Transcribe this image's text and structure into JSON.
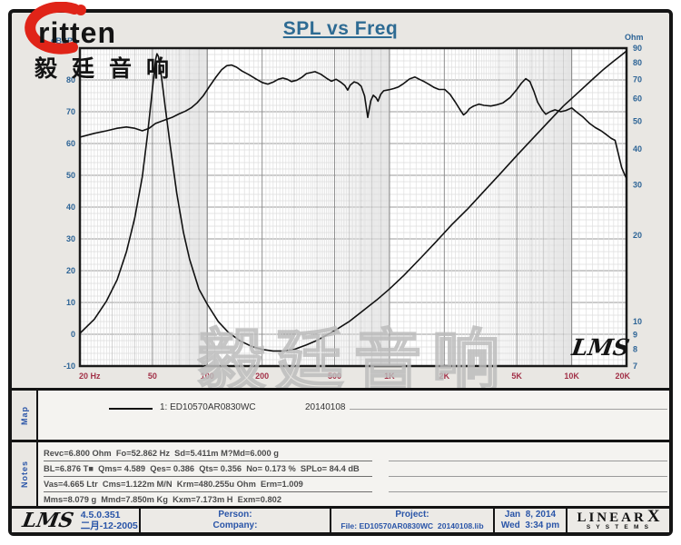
{
  "brand": {
    "name": "ritten",
    "cjk": "毅廷音响"
  },
  "watermark": "毅廷音响",
  "chart_data": {
    "type": "line",
    "title": "SPL vs Freq",
    "x_axis": {
      "scale": "log",
      "min": 20,
      "max": 20000,
      "unit": "Hz",
      "tick_values": [
        20,
        50,
        100,
        200,
        500,
        1000,
        2000,
        5000,
        10000,
        20000
      ],
      "tick_labels": [
        "20 Hz",
        "50",
        "100",
        "200",
        "500",
        "1K",
        "2K",
        "5K",
        "10K",
        "20K"
      ]
    },
    "y_left": {
      "label": "dBSPL",
      "scale": "linear",
      "min": -10,
      "max": 90,
      "ticks": [
        90,
        80,
        70,
        60,
        50,
        40,
        30,
        20,
        10,
        0,
        -10
      ]
    },
    "y_right": {
      "label": "Ohm",
      "scale": "log",
      "min": 7,
      "max": 90,
      "ticks": [
        90,
        80,
        70,
        60,
        50,
        40,
        30,
        20,
        10,
        9,
        8,
        7
      ]
    },
    "grid": "log-frequency grid on, linear dB minor grid on",
    "legend_position": "map-row-below-chart",
    "inner_logo": "LMS",
    "series": [
      {
        "name": "SPL  1: ED10570AR0830WC 20140108",
        "axis": "left",
        "color": "#111111",
        "points": [
          [
            20,
            62
          ],
          [
            24,
            63.2
          ],
          [
            28,
            64
          ],
          [
            32,
            64.8
          ],
          [
            36,
            65.2
          ],
          [
            40,
            64.8
          ],
          [
            44,
            64
          ],
          [
            48,
            64.8
          ],
          [
            52,
            66.3
          ],
          [
            58,
            67.3
          ],
          [
            64,
            68.2
          ],
          [
            70,
            69.3
          ],
          [
            76,
            70.2
          ],
          [
            82,
            71.3
          ],
          [
            88,
            72.8
          ],
          [
            95,
            75
          ],
          [
            103,
            78
          ],
          [
            112,
            81
          ],
          [
            120,
            83.2
          ],
          [
            128,
            84.5
          ],
          [
            136,
            84.7
          ],
          [
            145,
            84
          ],
          [
            155,
            82.8
          ],
          [
            170,
            81.6
          ],
          [
            185,
            80.3
          ],
          [
            200,
            79.2
          ],
          [
            215,
            78.7
          ],
          [
            230,
            79.3
          ],
          [
            245,
            80.2
          ],
          [
            260,
            80.6
          ],
          [
            275,
            80.2
          ],
          [
            290,
            79.5
          ],
          [
            310,
            79.9
          ],
          [
            330,
            80.8
          ],
          [
            350,
            82
          ],
          [
            390,
            82.6
          ],
          [
            420,
            81.8
          ],
          [
            450,
            80.6
          ],
          [
            480,
            79.6
          ],
          [
            510,
            80.2
          ],
          [
            540,
            79.3
          ],
          [
            570,
            78.2
          ],
          [
            590,
            76.8
          ],
          [
            610,
            78.4
          ],
          [
            640,
            79.4
          ],
          [
            670,
            79
          ],
          [
            700,
            78
          ],
          [
            730,
            75
          ],
          [
            760,
            68.2
          ],
          [
            790,
            73.5
          ],
          [
            815,
            75.2
          ],
          [
            845,
            74.4
          ],
          [
            865,
            73.3
          ],
          [
            895,
            75.5
          ],
          [
            930,
            76.6
          ],
          [
            970,
            76.8
          ],
          [
            1010,
            77
          ],
          [
            1060,
            77.3
          ],
          [
            1120,
            77.8
          ],
          [
            1200,
            78.9
          ],
          [
            1290,
            80.3
          ],
          [
            1380,
            80.9
          ],
          [
            1460,
            80.2
          ],
          [
            1550,
            79.5
          ],
          [
            1650,
            78.6
          ],
          [
            1750,
            77.7
          ],
          [
            1870,
            77
          ],
          [
            2010,
            77
          ],
          [
            2150,
            75.5
          ],
          [
            2300,
            73
          ],
          [
            2450,
            70.5
          ],
          [
            2550,
            69
          ],
          [
            2650,
            69.8
          ],
          [
            2750,
            71
          ],
          [
            2900,
            71.8
          ],
          [
            3100,
            72.4
          ],
          [
            3300,
            72
          ],
          [
            3600,
            71.8
          ],
          [
            3900,
            72.2
          ],
          [
            4200,
            72.8
          ],
          [
            4600,
            74.5
          ],
          [
            5000,
            77
          ],
          [
            5300,
            79
          ],
          [
            5600,
            80.4
          ],
          [
            5900,
            79.5
          ],
          [
            6200,
            76.5
          ],
          [
            6500,
            73
          ],
          [
            6900,
            70.5
          ],
          [
            7200,
            69.2
          ],
          [
            7600,
            70
          ],
          [
            8100,
            70.6
          ],
          [
            8700,
            70
          ],
          [
            9300,
            70.4
          ],
          [
            10000,
            71.2
          ],
          [
            10700,
            69.8
          ],
          [
            11500,
            68.4
          ],
          [
            12500,
            66.4
          ],
          [
            13500,
            65
          ],
          [
            14500,
            64
          ],
          [
            15500,
            62.8
          ],
          [
            16500,
            61.6
          ],
          [
            17300,
            61
          ],
          [
            18000,
            57
          ],
          [
            18800,
            52.5
          ],
          [
            19500,
            50.3
          ],
          [
            20000,
            49
          ]
        ]
      },
      {
        "name": "Impedance",
        "axis": "right",
        "color": "#111111",
        "points": [
          [
            20,
            9.1
          ],
          [
            24,
            10.2
          ],
          [
            28,
            11.8
          ],
          [
            32,
            14
          ],
          [
            36,
            17.5
          ],
          [
            40,
            23
          ],
          [
            44,
            32
          ],
          [
            47,
            45
          ],
          [
            50,
            65
          ],
          [
            52,
            82
          ],
          [
            53,
            86
          ],
          [
            54,
            84
          ],
          [
            56,
            72
          ],
          [
            59,
            55
          ],
          [
            63,
            40
          ],
          [
            68,
            28
          ],
          [
            74,
            20.5
          ],
          [
            80,
            16.5
          ],
          [
            90,
            13
          ],
          [
            100,
            11.5
          ],
          [
            115,
            10
          ],
          [
            130,
            9.2
          ],
          [
            150,
            8.6
          ],
          [
            175,
            8.2
          ],
          [
            200,
            8
          ],
          [
            230,
            7.9
          ],
          [
            260,
            7.9
          ],
          [
            300,
            8
          ],
          [
            350,
            8.3
          ],
          [
            400,
            8.6
          ],
          [
            500,
            9.3
          ],
          [
            600,
            10
          ],
          [
            700,
            10.8
          ],
          [
            850,
            11.9
          ],
          [
            1000,
            13
          ],
          [
            1200,
            14.5
          ],
          [
            1500,
            16.8
          ],
          [
            1800,
            19
          ],
          [
            2200,
            21.8
          ],
          [
            2700,
            24.8
          ],
          [
            3300,
            28.5
          ],
          [
            4000,
            32.5
          ],
          [
            5000,
            38
          ],
          [
            6000,
            43
          ],
          [
            7500,
            50
          ],
          [
            9000,
            56.5
          ],
          [
            11000,
            63.5
          ],
          [
            13000,
            70
          ],
          [
            15000,
            76
          ],
          [
            17000,
            81
          ],
          [
            18500,
            84.5
          ],
          [
            20000,
            88
          ]
        ]
      }
    ],
    "colors": {
      "tick_left": "#2d6496",
      "tick_bottom": "#a23148",
      "curve": "#111111"
    }
  },
  "map": {
    "label": "Map",
    "legend": {
      "name": "1: ED10570AR0830WC",
      "date": "20140108"
    }
  },
  "notes": {
    "label": "Notes",
    "lines": [
      "Revc=6.800 Ohm  Fo=52.862 Hz  Sd=5.411m M?Md=6.000 g",
      "BL=6.876 T■  Qms= 4.589  Qes= 0.386  Qts= 0.356  No= 0.173 %  SPLo= 84.4 dB",
      "Vas=4.665 Ltr  Cms=1.122m M/N  Krm=480.255u Ohm  Erm=1.009",
      "Mms=8.079 g  Mmd=7.850m Kg  Kxm=7.173m H  Exm=0.802"
    ]
  },
  "statusbar": {
    "lms_logo": "LMS",
    "version": "4.5.0.351",
    "version_date": "二月-12-2005",
    "person_label": "Person:",
    "company_label": "Company:",
    "project_label": "Project:",
    "file_label": "File: ED10570AR0830WC  20140108.lib",
    "date": "Jan  8, 2014",
    "time": "Wed  3:34 pm",
    "linearx_word": "LINEAR",
    "linearx_x": "X",
    "linearx_sub": "S  Y  S  T  E  M  S"
  }
}
